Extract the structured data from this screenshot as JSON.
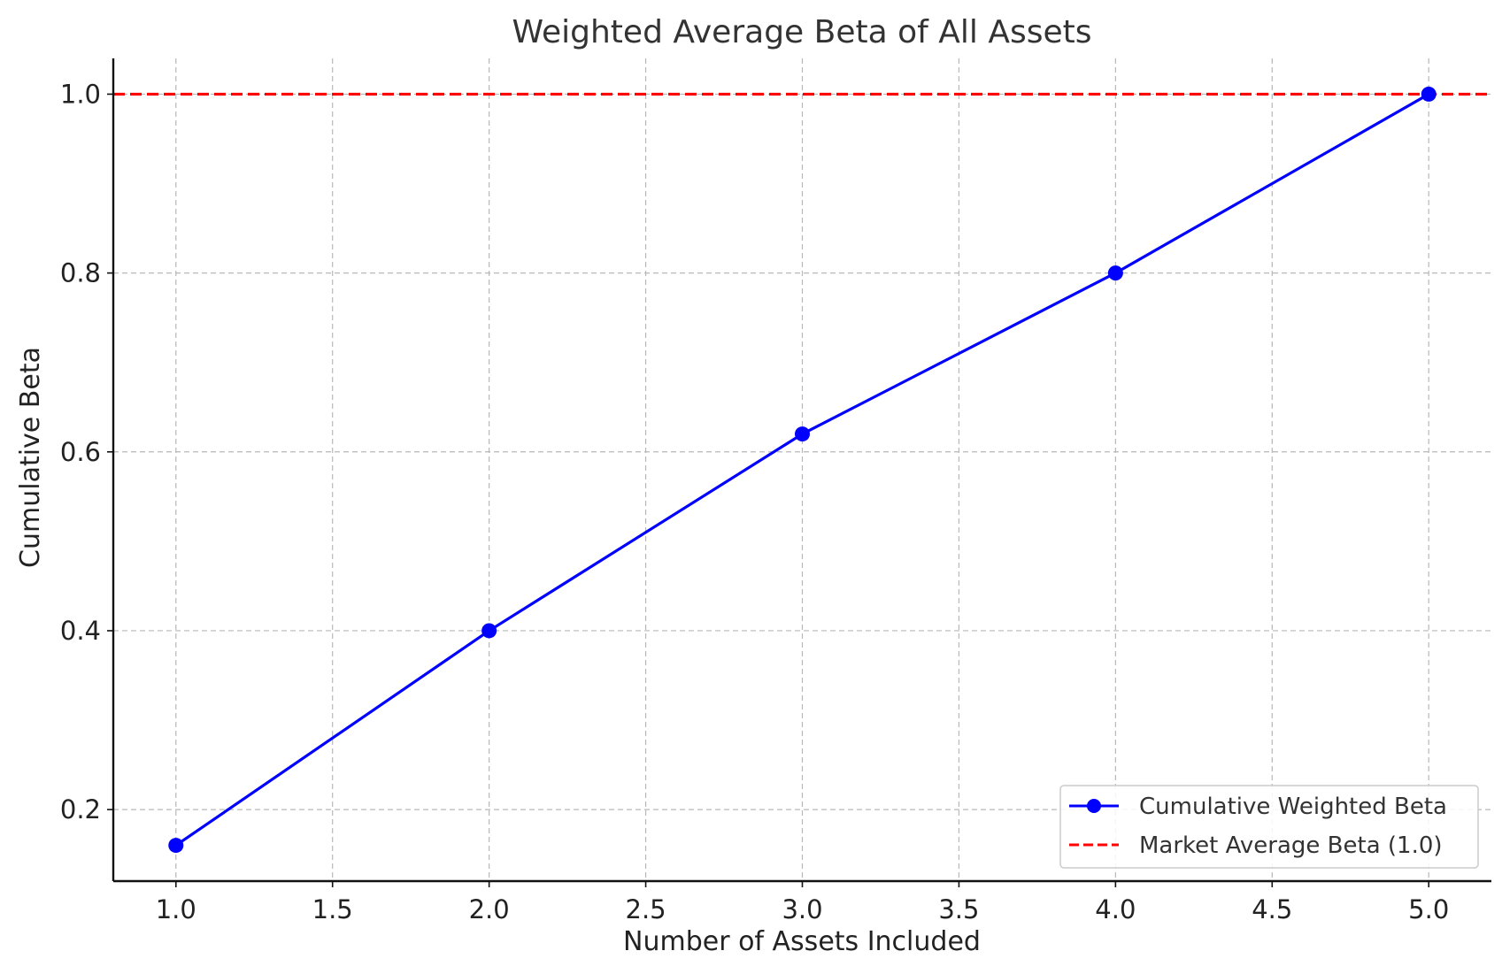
{
  "chart_data": {
    "type": "line",
    "title": "Weighted Average Beta of All Assets",
    "xlabel": "Number of Assets Included",
    "ylabel": "Cumulative Beta",
    "xlim": [
      0.8,
      5.2
    ],
    "ylim": [
      0.12,
      1.04
    ],
    "xticks": [
      1.0,
      1.5,
      2.0,
      2.5,
      3.0,
      3.5,
      4.0,
      4.5,
      5.0
    ],
    "xtick_labels": [
      "1.0",
      "1.5",
      "2.0",
      "2.5",
      "3.0",
      "3.5",
      "4.0",
      "4.5",
      "5.0"
    ],
    "yticks": [
      0.2,
      0.4,
      0.6,
      0.8,
      1.0
    ],
    "ytick_labels": [
      "0.2",
      "0.4",
      "0.6",
      "0.8",
      "1.0"
    ],
    "grid": true,
    "legend_position": "bottom-right",
    "series": [
      {
        "name": "Cumulative Weighted Beta",
        "x": [
          1,
          2,
          3,
          4,
          5
        ],
        "y": [
          0.16,
          0.4,
          0.62,
          0.8,
          1.0
        ],
        "color": "#0000ff",
        "style": "solid",
        "marker": "circle"
      }
    ],
    "reference_lines": [
      {
        "name": "Market Average Beta (1.0)",
        "y": 1.0,
        "color": "#ff0000",
        "style": "dashed"
      }
    ]
  }
}
